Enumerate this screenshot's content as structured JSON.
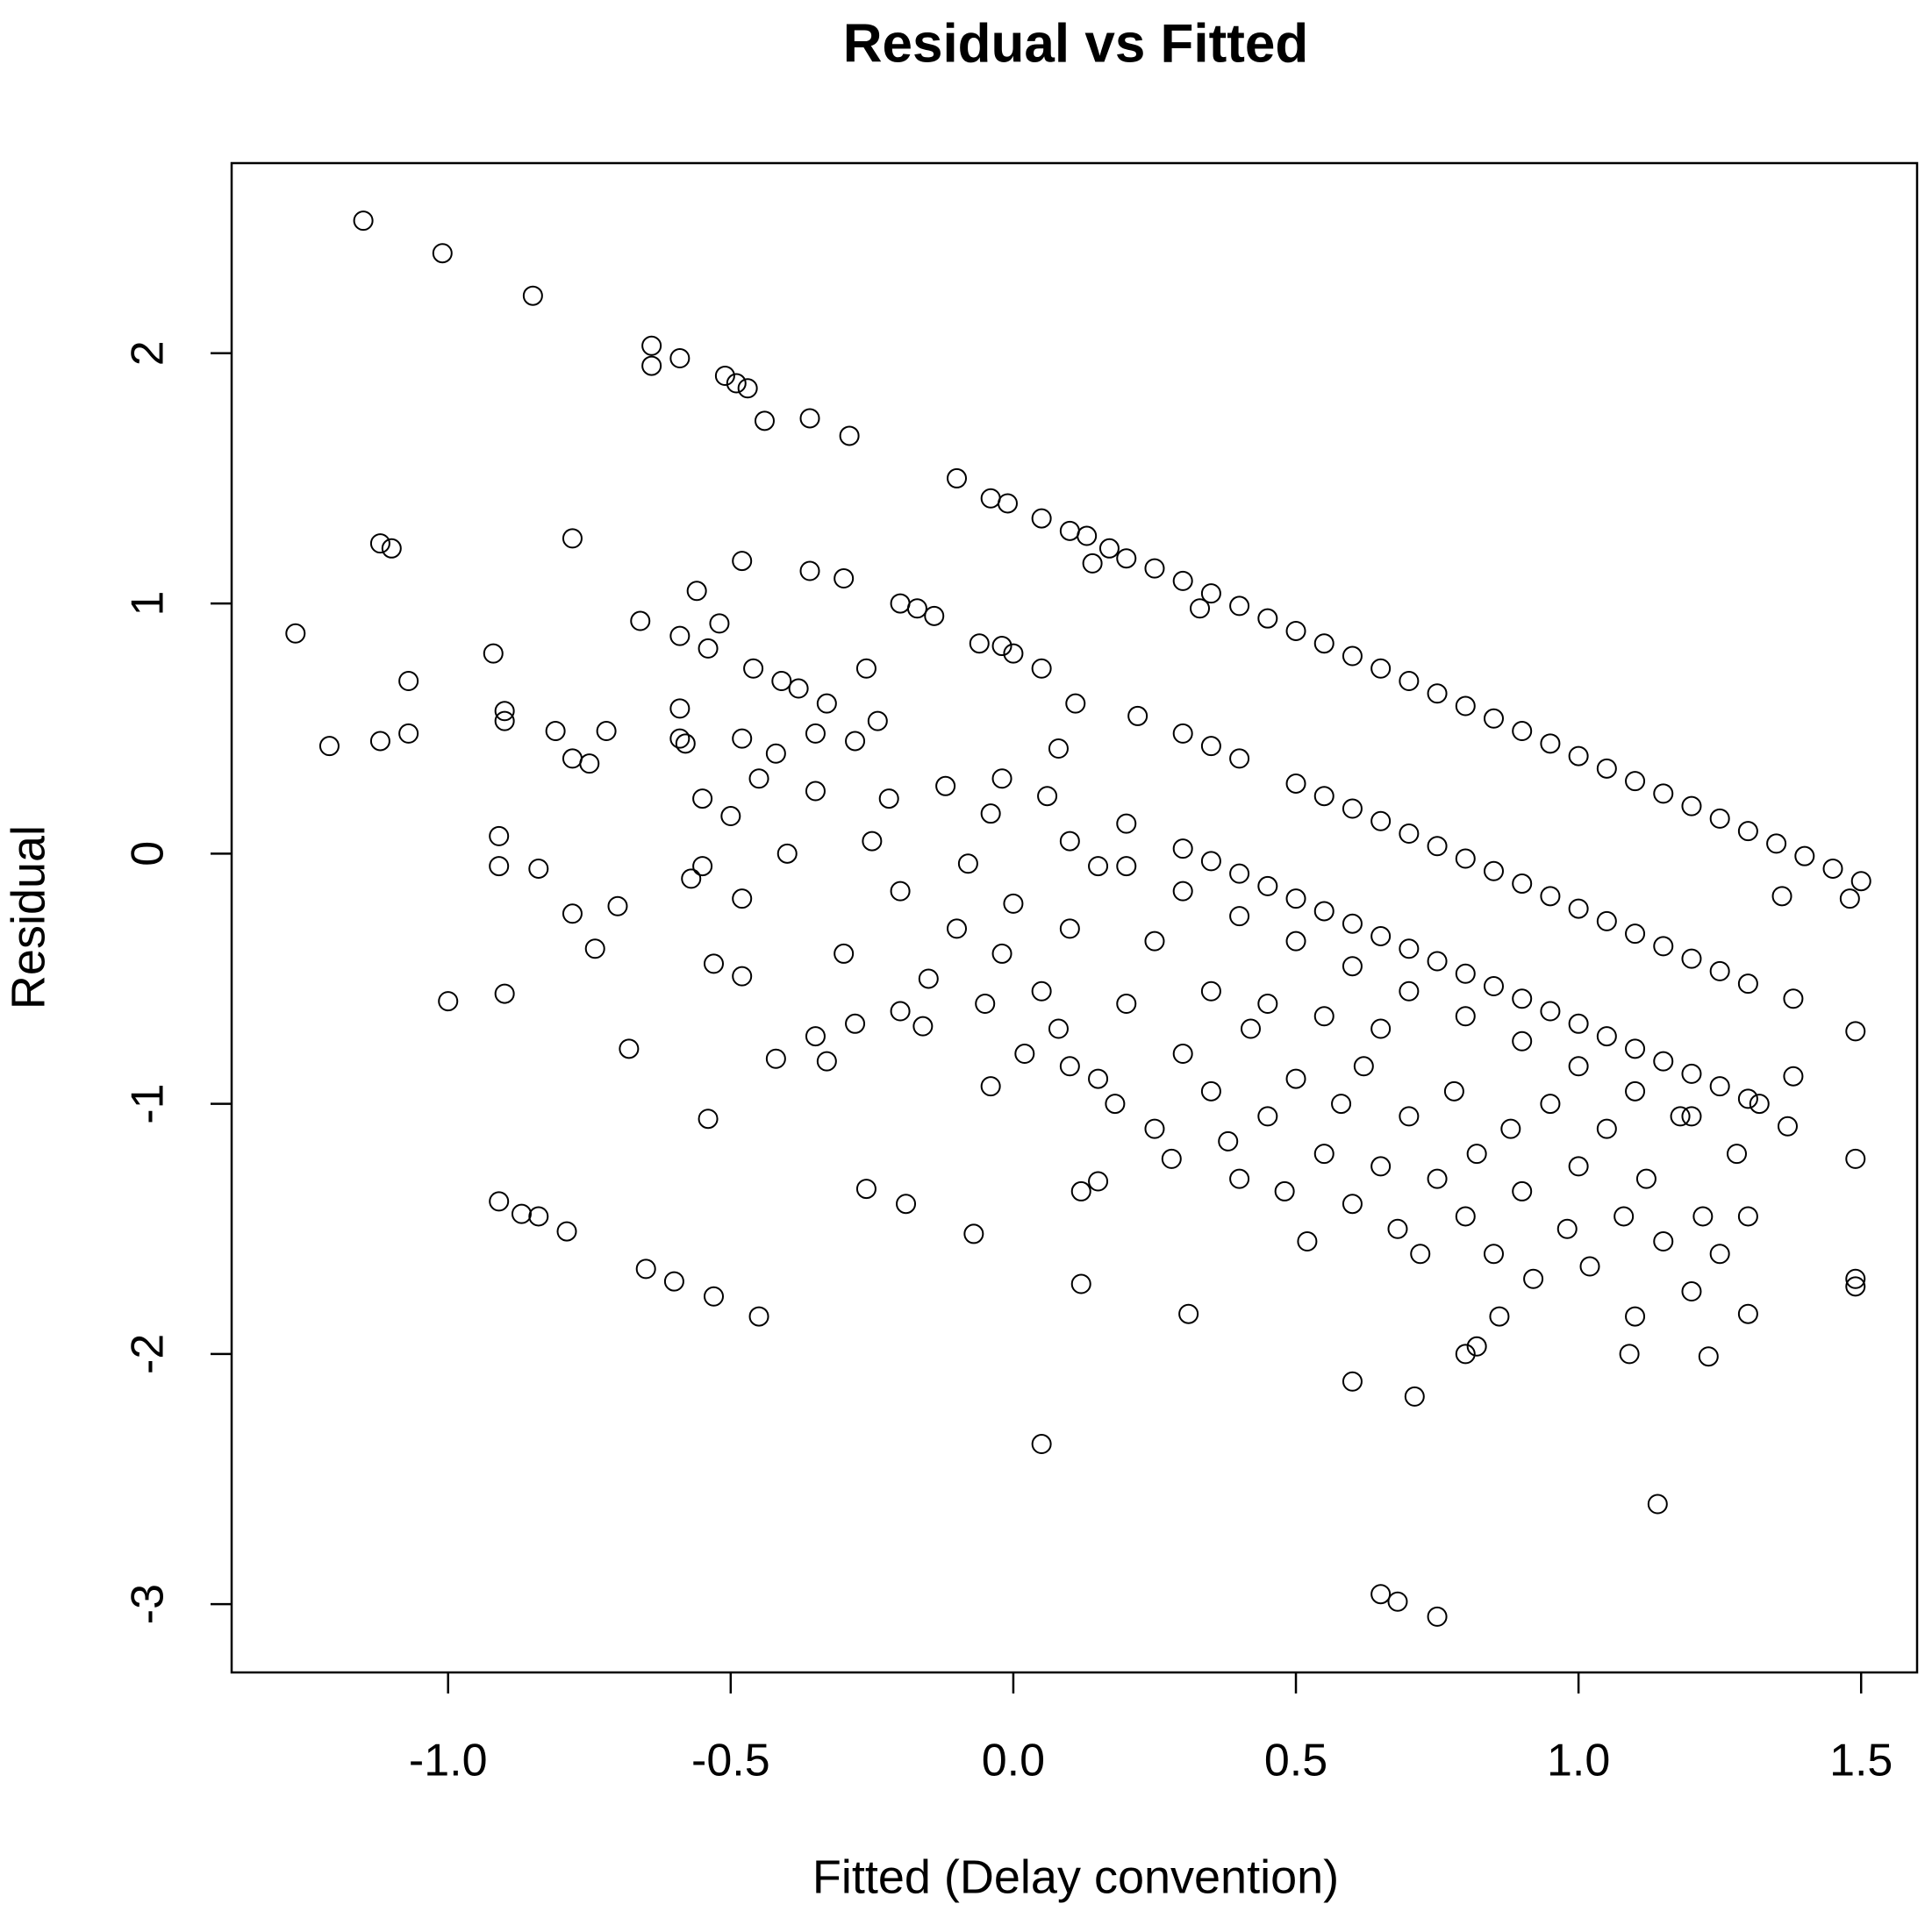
{
  "chart_data": {
    "type": "scatter",
    "title": "Residual vs Fitted",
    "x_label": "Fitted (Delay convention)",
    "y_label": "Residual",
    "xlim": [
      -1.383,
      1.599
    ],
    "ylim": [
      -3.273,
      2.76
    ],
    "xticks": [
      {
        "value": -1,
        "label": "-1.0"
      },
      -0.5,
      {
        "value": 0,
        "label": "0.0"
      },
      0.5,
      {
        "value": 1,
        "label": "1.0"
      },
      1.5
    ],
    "yticks": [
      -3,
      -2,
      -1,
      0,
      1,
      2
    ],
    "color": "#000000",
    "x": [
      -1.27,
      -1.21,
      -1.15,
      -1.12,
      -1.12,
      -1.1,
      -1.07,
      -1.07,
      -1.01,
      -1.0,
      -0.92,
      -0.91,
      -0.91,
      -0.91,
      -0.9,
      -0.9,
      -0.9,
      -0.87,
      -0.85,
      -0.84,
      -0.84,
      -0.81,
      -0.79,
      -0.78,
      -0.78,
      -0.78,
      -0.75,
      -0.74,
      -0.72,
      -0.7,
      -0.68,
      -0.66,
      -0.65,
      -0.64,
      -0.64,
      -0.6,
      -0.59,
      -0.59,
      -0.59,
      -0.59,
      -0.58,
      -0.57,
      -0.56,
      -0.55,
      -0.54,
      -0.54,
      -0.53,
      -0.53,
      -0.52,
      -0.51,
      -0.49,
      -0.48,
      -0.48,
      -0.48,
      -0.48,
      -0.47,
      -0.46,
      -0.45,
      -0.44,
      -0.42,
      -0.42,
      -0.41,
      -0.38,
      -0.36,
      -0.36,
      -0.35,
      -0.35,
      -0.33,
      -0.33,
      -0.3,
      -0.29,
      -0.28,
      -0.26,
      -0.26,
      -0.24,
      -0.22,
      -0.2,
      -0.2,
      -0.19,
      -0.17,
      -0.16,
      -0.14,
      -0.12,
      -0.1,
      -0.08,
      -0.07,
      -0.06,
      -0.04,
      -0.04,
      -0.04,
      -0.02,
      -0.02,
      -0.01,
      0.0,
      0.05,
      0.05,
      0.05,
      0.06,
      0.08,
      0.1,
      0.11,
      0.12,
      0.12,
      0.13,
      0.14,
      0.15,
      0.17,
      0.2,
      0.22,
      0.31,
      0.33,
      0.6,
      0.65,
      0.68,
      0.71,
      0.75,
      1.09,
      1.14,
      1.23,
      1.3,
      1.37,
      1.38,
      1.38,
      1.36,
      1.48,
      1.49,
      1.49,
      1.49,
      1.49,
      0.25,
      0.3,
      0.35,
      0.4,
      0.45,
      0.5,
      0.55,
      0.6,
      0.65,
      0.7,
      0.75,
      0.8,
      0.85,
      0.9,
      0.95,
      1.0,
      1.05,
      1.1,
      1.15,
      1.2,
      1.25,
      1.3,
      1.35,
      1.4,
      1.45,
      1.5,
      0.3,
      0.35,
      0.4,
      0.5,
      0.55,
      0.6,
      0.65,
      0.7,
      0.75,
      0.8,
      0.85,
      0.9,
      0.95,
      1.0,
      1.05,
      1.1,
      1.15,
      1.2,
      1.25,
      1.3,
      0.2,
      0.3,
      0.35,
      0.4,
      0.45,
      0.5,
      0.55,
      0.6,
      0.65,
      0.7,
      0.75,
      0.8,
      0.85,
      0.9,
      0.95,
      1.0,
      1.05,
      1.1,
      1.15,
      1.2,
      1.25,
      1.3,
      0.1,
      0.2,
      0.3,
      0.4,
      0.5,
      0.6,
      0.7,
      0.8,
      0.9,
      1.0,
      1.1,
      1.2,
      0.05,
      0.08,
      0.1,
      0.15,
      0.18,
      0.2,
      0.25,
      0.28,
      0.3,
      0.35,
      0.38,
      0.4,
      0.42,
      0.45,
      0.48,
      0.5,
      0.52,
      0.55,
      0.58,
      0.6,
      0.62,
      0.65,
      0.68,
      0.7,
      0.72,
      0.75,
      0.78,
      0.8,
      0.82,
      0.85,
      0.86,
      0.88,
      0.9,
      0.92,
      0.95,
      0.98,
      1.0,
      1.02,
      1.05,
      1.08,
      1.1,
      1.12,
      1.15,
      1.18,
      1.2,
      1.22,
      1.25,
      1.28,
      1.3,
      1.32,
      0.8,
      0.82,
      -0.02,
      -0.05,
      -0.1,
      -0.15,
      -0.2,
      -0.25,
      -0.28,
      -0.3,
      -0.35,
      -0.4,
      -0.45,
      -0.5,
      -0.55,
      0.0,
      0.02,
      0.1,
      0.15,
      0.25,
      0.35,
      0.45,
      0.55,
      0.65
    ],
    "values": [
      0.88,
      0.43,
      2.53,
      1.24,
      0.45,
      1.22,
      0.69,
      0.48,
      2.4,
      -0.59,
      0.8,
      0.07,
      -0.05,
      -1.39,
      0.57,
      0.53,
      -0.56,
      -1.44,
      2.23,
      -0.06,
      -1.45,
      0.49,
      -1.51,
      1.26,
      0.38,
      -0.24,
      0.36,
      -0.38,
      0.49,
      -0.21,
      -0.78,
      0.93,
      -1.66,
      2.03,
      1.95,
      -1.71,
      1.98,
      0.58,
      0.46,
      0.87,
      0.44,
      -0.1,
      1.05,
      0.22,
      0.82,
      -1.06,
      -1.77,
      -0.44,
      0.92,
      1.91,
      1.88,
      1.17,
      0.46,
      -0.49,
      -0.18,
      1.86,
      0.74,
      -1.85,
      1.73,
      0.4,
      -0.82,
      0.69,
      0.66,
      1.74,
      1.13,
      0.48,
      -0.73,
      0.6,
      -0.83,
      1.1,
      1.67,
      -0.68,
      0.74,
      -1.34,
      0.53,
      0.22,
      -0.63,
      1.0,
      -1.4,
      0.98,
      -0.69,
      0.95,
      0.27,
      1.5,
      -0.04,
      -1.52,
      0.84,
      -0.93,
      0.16,
      1.42,
      0.3,
      0.83,
      1.4,
      0.8,
      1.34,
      0.74,
      -2.36,
      0.23,
      0.42,
      1.29,
      0.6,
      -1.35,
      -1.72,
      1.27,
      1.16,
      -1.31,
      1.22,
      1.18,
      0.55,
      -1.84,
      0.98,
      -2.11,
      -2.96,
      -2.99,
      -2.17,
      -3.05,
      -2.0,
      -2.6,
      -2.01,
      -1.84,
      -1.09,
      -0.58,
      -0.89,
      -0.17,
      -0.18,
      -0.71,
      -1.22,
      -1.7,
      -1.73,
      1.14,
      1.09,
      1.04,
      0.99,
      0.94,
      0.89,
      0.84,
      0.79,
      0.74,
      0.69,
      0.64,
      0.59,
      0.54,
      0.49,
      0.44,
      0.39,
      0.34,
      0.29,
      0.24,
      0.19,
      0.14,
      0.09,
      0.04,
      -0.01,
      -0.06,
      -0.11,
      0.48,
      0.43,
      0.38,
      0.28,
      0.23,
      0.18,
      0.13,
      0.08,
      0.03,
      -0.02,
      -0.07,
      -0.12,
      -0.17,
      -0.22,
      -0.27,
      -0.32,
      -0.37,
      -0.42,
      -0.47,
      -0.52,
      0.12,
      0.02,
      -0.03,
      -0.08,
      -0.13,
      -0.18,
      -0.23,
      -0.28,
      -0.33,
      -0.38,
      -0.43,
      -0.48,
      -0.53,
      -0.58,
      -0.63,
      -0.68,
      -0.73,
      -0.78,
      -0.83,
      -0.88,
      -0.93,
      -0.98,
      0.05,
      -0.05,
      -0.15,
      -0.25,
      -0.35,
      -0.45,
      -0.55,
      -0.65,
      -0.75,
      -0.85,
      -0.95,
      -1.05,
      -0.55,
      -0.7,
      -0.85,
      -0.9,
      -1.0,
      -0.6,
      -1.1,
      -1.22,
      -0.8,
      -0.95,
      -1.15,
      -1.3,
      -0.7,
      -1.05,
      -1.35,
      -0.9,
      -1.55,
      -1.2,
      -1.0,
      -1.4,
      -0.85,
      -1.25,
      -1.5,
      -1.05,
      -1.6,
      -1.3,
      -0.95,
      -1.45,
      -1.2,
      -1.6,
      -1.85,
      -1.1,
      -1.35,
      -1.7,
      -1.0,
      -1.5,
      -1.25,
      -1.65,
      -1.1,
      -1.45,
      -1.85,
      -1.3,
      -1.55,
      -1.05,
      -1.75,
      -1.45,
      -1.6,
      -1.2,
      -1.45,
      -1.0,
      -2.0,
      -1.97,
      -0.4,
      -0.6,
      -0.3,
      -0.5,
      -0.15,
      0.05,
      0.45,
      -0.4,
      0.25,
      0.0,
      0.3,
      0.15,
      -0.05,
      -0.2,
      -0.8,
      -0.3,
      -0.05,
      -0.35,
      -0.55,
      -0.6,
      -0.65,
      -0.7
    ]
  }
}
